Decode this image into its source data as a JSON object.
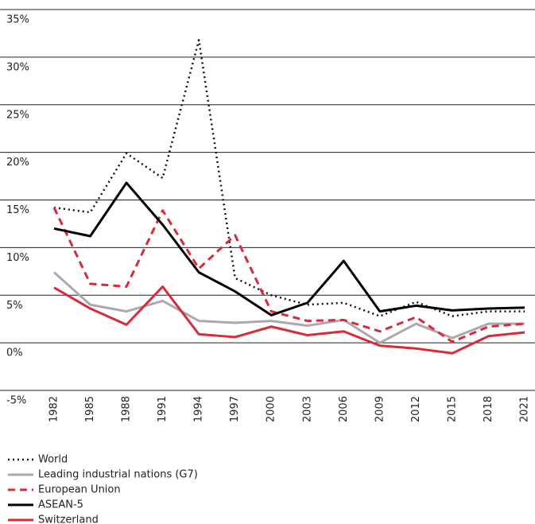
{
  "chart_data": {
    "type": "line",
    "x": [
      1982,
      1985,
      1988,
      1991,
      1994,
      1997,
      2000,
      2003,
      2006,
      2009,
      2012,
      2015,
      2018,
      2021
    ],
    "xlim": [
      1982,
      2021
    ],
    "xticks": [
      1982,
      1985,
      1988,
      1991,
      1994,
      1997,
      2000,
      2003,
      2006,
      2009,
      2012,
      2015,
      2018,
      2021
    ],
    "ylim": [
      -5,
      35
    ],
    "yticks": [
      {
        "value": -5,
        "label": "-5%"
      },
      {
        "value": 0,
        "label": "0%"
      },
      {
        "value": 5,
        "label": "5%"
      },
      {
        "value": 10,
        "label": "10%"
      },
      {
        "value": 15,
        "label": "15%"
      },
      {
        "value": 20,
        "label": "20%"
      },
      {
        "value": 25,
        "label": "25%"
      },
      {
        "value": 30,
        "label": "30%"
      },
      {
        "value": 35,
        "label": "35%"
      }
    ],
    "grid": true,
    "legend": "bottom",
    "series": [
      {
        "name": "World",
        "color": "#111111",
        "dash": "dotted",
        "values": [
          14.2,
          13.7,
          19.9,
          17.3,
          31.8,
          6.8,
          5.0,
          4.0,
          4.2,
          2.8,
          4.3,
          2.8,
          3.3,
          3.3
        ]
      },
      {
        "name": "Leading industrial nations (G7)",
        "color": "#aaaaaa",
        "dash": "solid",
        "values": [
          7.4,
          4.0,
          3.3,
          4.4,
          2.3,
          2.1,
          2.3,
          1.8,
          2.4,
          0.0,
          2.0,
          0.5,
          2.0,
          2.0
        ]
      },
      {
        "name": "European Union",
        "color": "#d62b38",
        "dash": "dashed",
        "values": [
          14.2,
          6.2,
          5.9,
          13.9,
          7.8,
          11.3,
          3.3,
          2.3,
          2.4,
          1.2,
          2.7,
          0.1,
          1.7,
          2.0
        ]
      },
      {
        "name": "ASEAN-5",
        "color": "#000000",
        "dash": "solid",
        "values": [
          12.0,
          11.2,
          16.8,
          12.4,
          7.4,
          5.4,
          2.9,
          4.2,
          8.6,
          3.3,
          3.9,
          3.4,
          3.6,
          3.7
        ]
      },
      {
        "name": "Switzerland",
        "color": "#d62b38",
        "dash": "solid",
        "values": [
          5.8,
          3.6,
          1.9,
          5.9,
          0.9,
          0.6,
          1.7,
          0.8,
          1.2,
          -0.3,
          -0.6,
          -1.1,
          0.7,
          1.1
        ]
      }
    ]
  }
}
